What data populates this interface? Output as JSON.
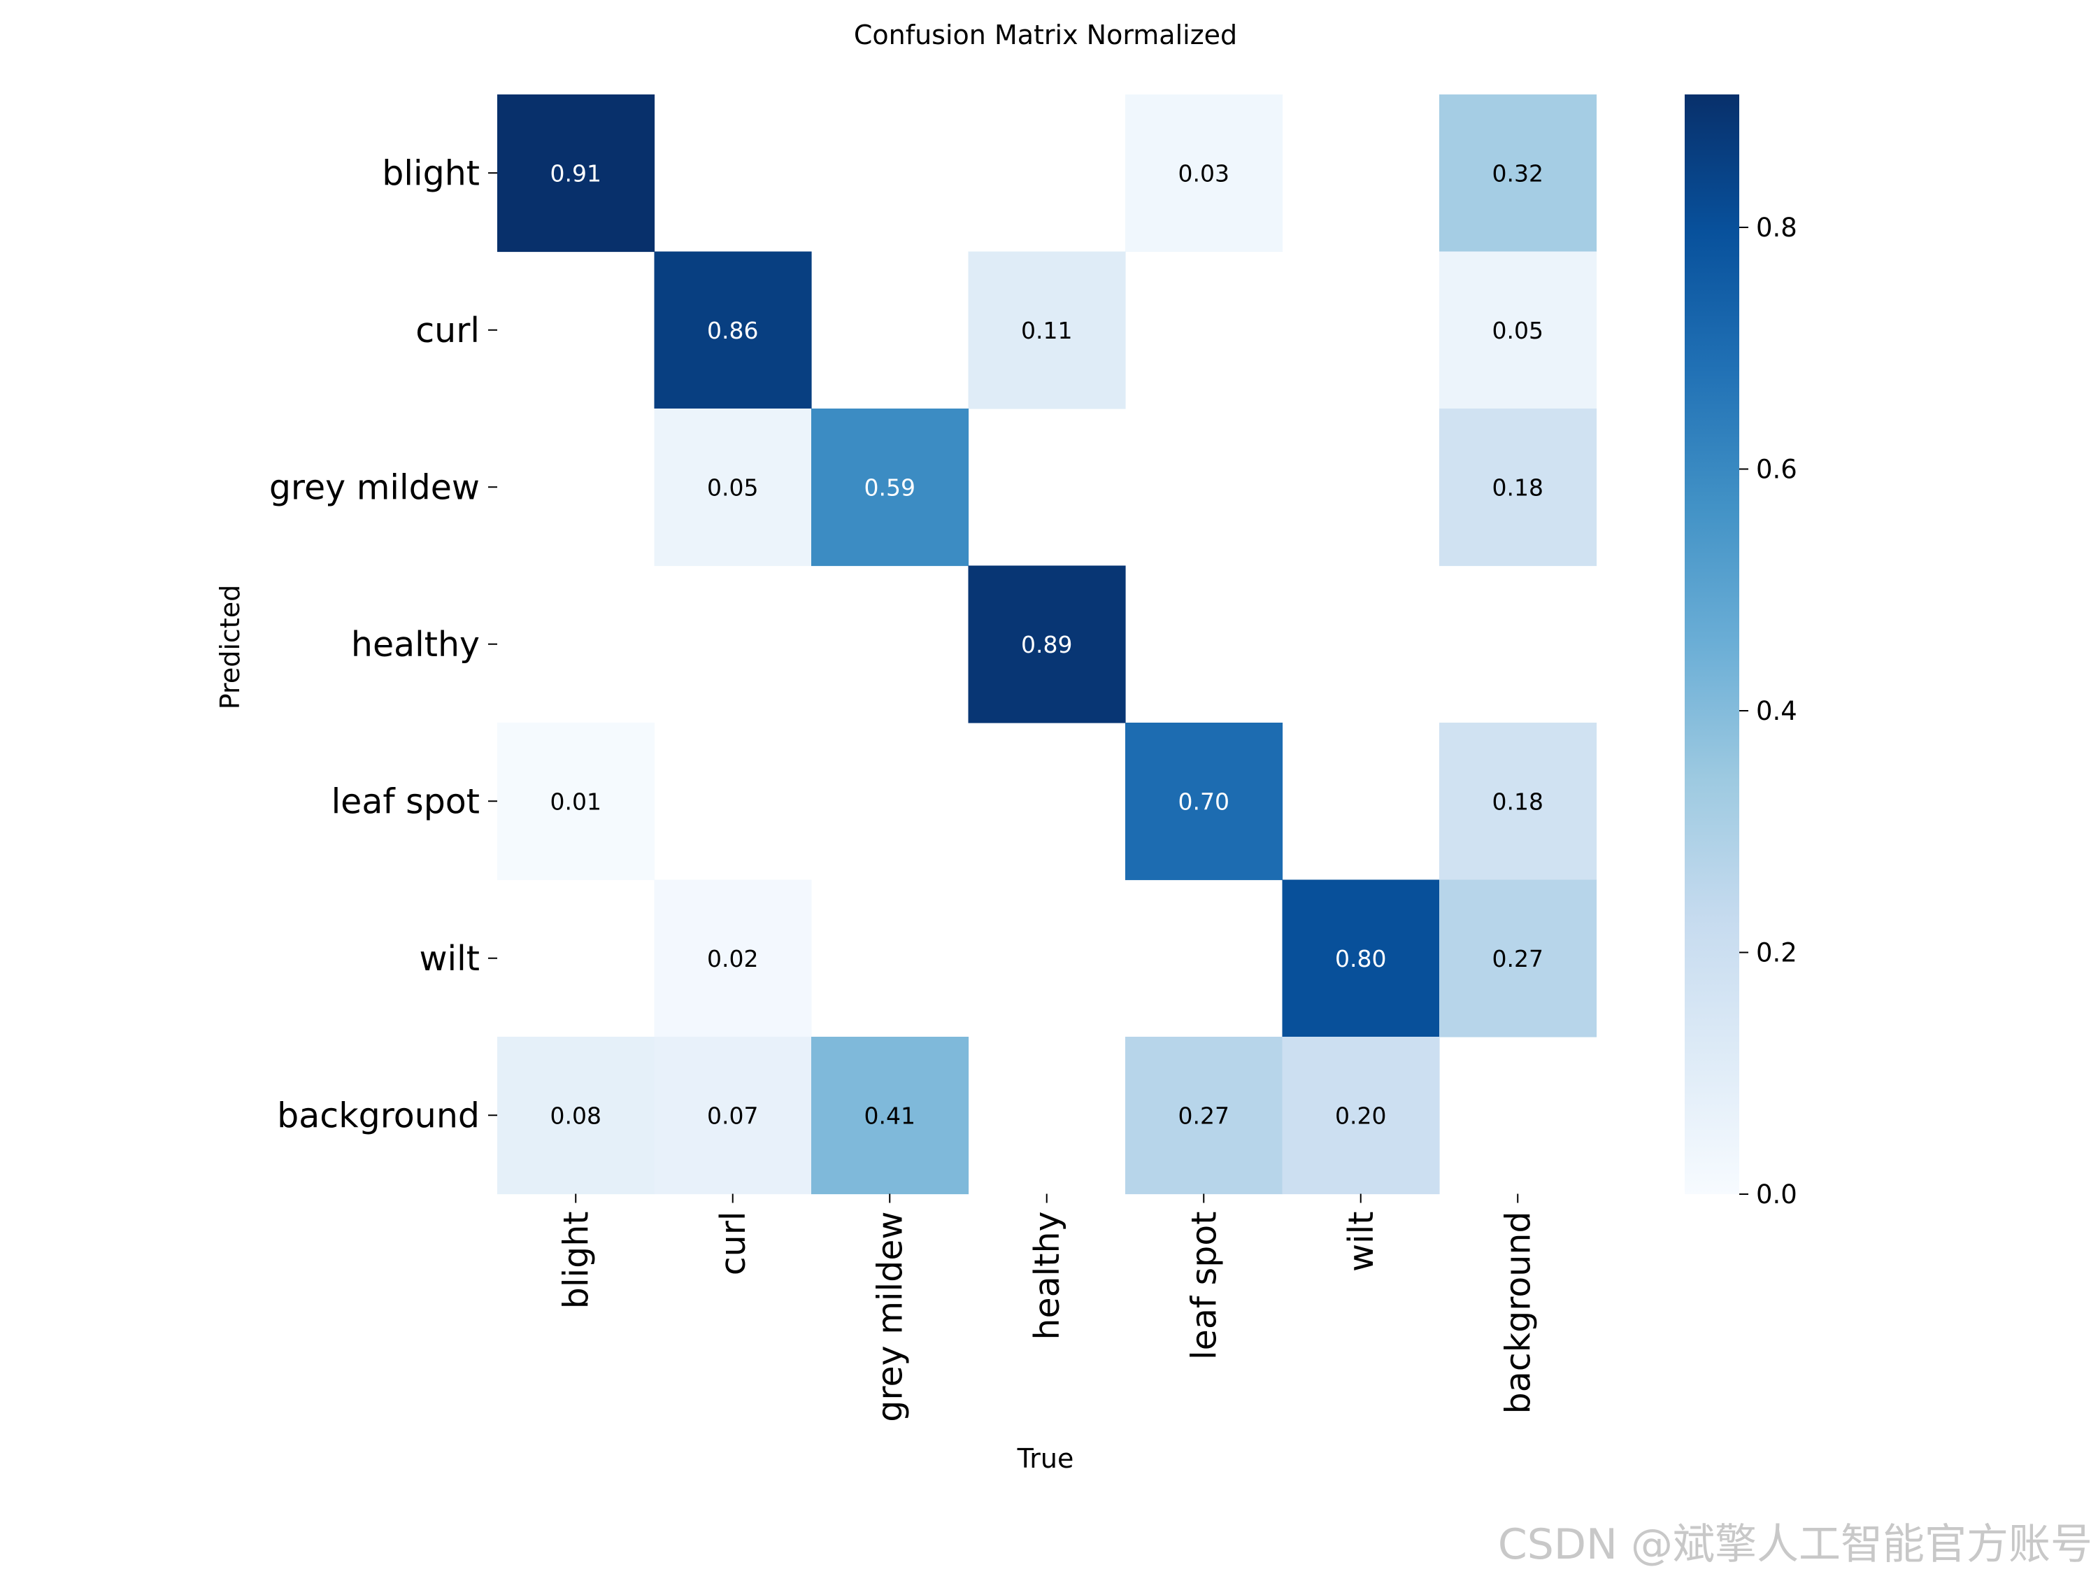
{
  "chart_data": {
    "type": "heatmap",
    "title": "Confusion Matrix Normalized",
    "xlabel": "True",
    "ylabel": "Predicted",
    "x_categories": [
      "blight",
      "curl",
      "grey mildew",
      "healthy",
      "leaf spot",
      "wilt",
      "background"
    ],
    "y_categories": [
      "blight",
      "curl",
      "grey mildew",
      "healthy",
      "leaf spot",
      "wilt",
      "background"
    ],
    "values": [
      [
        0.91,
        null,
        null,
        null,
        0.03,
        null,
        0.32
      ],
      [
        null,
        0.86,
        null,
        0.11,
        null,
        null,
        0.05
      ],
      [
        null,
        0.05,
        0.59,
        null,
        null,
        null,
        0.18
      ],
      [
        null,
        null,
        null,
        0.89,
        null,
        null,
        null
      ],
      [
        0.01,
        null,
        null,
        null,
        0.7,
        null,
        0.18
      ],
      [
        null,
        0.02,
        null,
        null,
        null,
        0.8,
        0.27
      ],
      [
        0.08,
        0.07,
        0.41,
        null,
        0.27,
        0.2,
        null
      ]
    ],
    "colormap": "Blues",
    "vmin": 0.0,
    "vmax": 0.91,
    "colorbar_ticks": [
      "0.0",
      "0.2",
      "0.4",
      "0.6",
      "0.8"
    ],
    "colorbar_tick_values": [
      0.0,
      0.2,
      0.4,
      0.6,
      0.8
    ],
    "annotation_format": "2 decimals",
    "empty_cells": "blank (value below threshold)"
  },
  "watermark": "CSDN @斌擎人工智能官方账号"
}
